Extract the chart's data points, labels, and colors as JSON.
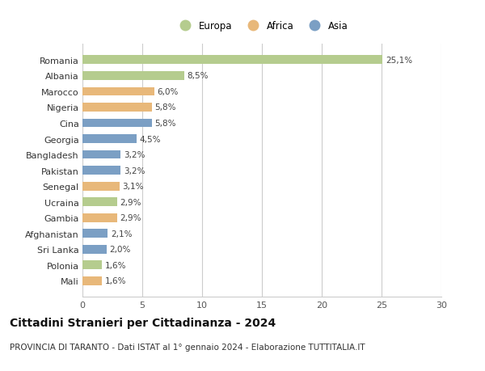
{
  "categories": [
    "Romania",
    "Albania",
    "Marocco",
    "Nigeria",
    "Cina",
    "Georgia",
    "Bangladesh",
    "Pakistan",
    "Senegal",
    "Ucraina",
    "Gambia",
    "Afghanistan",
    "Sri Lanka",
    "Polonia",
    "Mali"
  ],
  "values": [
    25.1,
    8.5,
    6.0,
    5.8,
    5.8,
    4.5,
    3.2,
    3.2,
    3.1,
    2.9,
    2.9,
    2.1,
    2.0,
    1.6,
    1.6
  ],
  "labels": [
    "25,1%",
    "8,5%",
    "6,0%",
    "5,8%",
    "5,8%",
    "4,5%",
    "3,2%",
    "3,2%",
    "3,1%",
    "2,9%",
    "2,9%",
    "2,1%",
    "2,0%",
    "1,6%",
    "1,6%"
  ],
  "continents": [
    "Europa",
    "Europa",
    "Africa",
    "Africa",
    "Asia",
    "Asia",
    "Asia",
    "Asia",
    "Africa",
    "Europa",
    "Africa",
    "Asia",
    "Asia",
    "Europa",
    "Africa"
  ],
  "colors": {
    "Europa": "#b5cc8e",
    "Africa": "#e8b87a",
    "Asia": "#7b9fc4"
  },
  "xlim": [
    0,
    30
  ],
  "xticks": [
    0,
    5,
    10,
    15,
    20,
    25,
    30
  ],
  "title": "Cittadini Stranieri per Cittadinanza - 2024",
  "subtitle": "PROVINCIA DI TARANTO - Dati ISTAT al 1° gennaio 2024 - Elaborazione TUTTITALIA.IT",
  "background_color": "#ffffff",
  "grid_color": "#cccccc",
  "bar_height": 0.55,
  "title_fontsize": 10,
  "subtitle_fontsize": 7.5,
  "label_fontsize": 7.5,
  "tick_fontsize": 8,
  "legend_fontsize": 8.5
}
